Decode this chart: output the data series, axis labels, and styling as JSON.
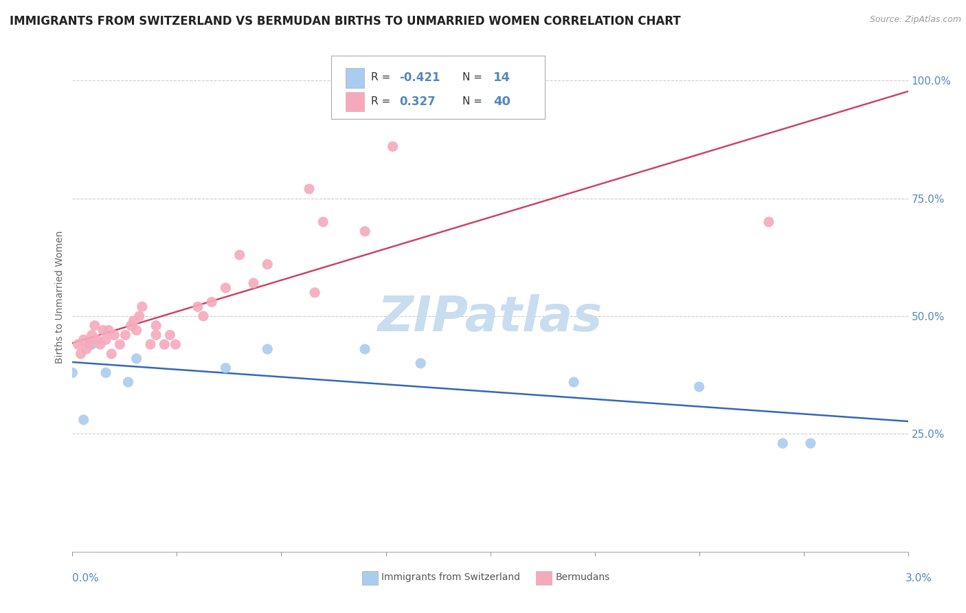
{
  "title": "IMMIGRANTS FROM SWITZERLAND VS BERMUDAN BIRTHS TO UNMARRIED WOMEN CORRELATION CHART",
  "source": "Source: ZipAtlas.com",
  "ylabel": "Births to Unmarried Women",
  "background_color": "#ffffff",
  "blue_dot_color": "#aaccee",
  "pink_dot_color": "#f5aabc",
  "blue_line_color": "#3366bb",
  "pink_line_color": "#cc4466",
  "tick_color": "#5588bb",
  "watermark_color": "#c8ddf0",
  "swiss_x": [
    0.0,
    0.04,
    0.07,
    0.12,
    0.2,
    0.23,
    0.55,
    0.7,
    1.05,
    1.25,
    1.8,
    2.25,
    2.55,
    2.65
  ],
  "swiss_y": [
    38,
    28,
    44,
    38,
    36,
    41,
    39,
    43,
    43,
    40,
    36,
    35,
    23,
    23
  ],
  "berm_x": [
    0.02,
    0.03,
    0.04,
    0.05,
    0.06,
    0.07,
    0.08,
    0.09,
    0.1,
    0.11,
    0.12,
    0.13,
    0.14,
    0.15,
    0.17,
    0.19,
    0.21,
    0.22,
    0.23,
    0.24,
    0.25,
    0.28,
    0.3,
    0.3,
    0.33,
    0.35,
    0.37,
    0.45,
    0.47,
    0.5,
    0.55,
    0.6,
    0.65,
    0.7,
    0.85,
    0.87,
    0.9,
    1.05,
    1.15,
    2.5
  ],
  "berm_y": [
    44,
    42,
    45,
    43,
    44,
    46,
    48,
    45,
    44,
    47,
    45,
    47,
    42,
    46,
    44,
    46,
    48,
    49,
    47,
    50,
    52,
    44,
    48,
    46,
    44,
    46,
    44,
    52,
    50,
    53,
    56,
    63,
    57,
    61,
    77,
    55,
    70,
    68,
    86,
    70
  ],
  "xlim": [
    0.0,
    3.0
  ],
  "ylim": [
    0,
    108
  ],
  "yticks": [
    25,
    50,
    75,
    100
  ],
  "ytick_labels": [
    "25.0%",
    "50.0%",
    "75.0%",
    "100.0%"
  ]
}
